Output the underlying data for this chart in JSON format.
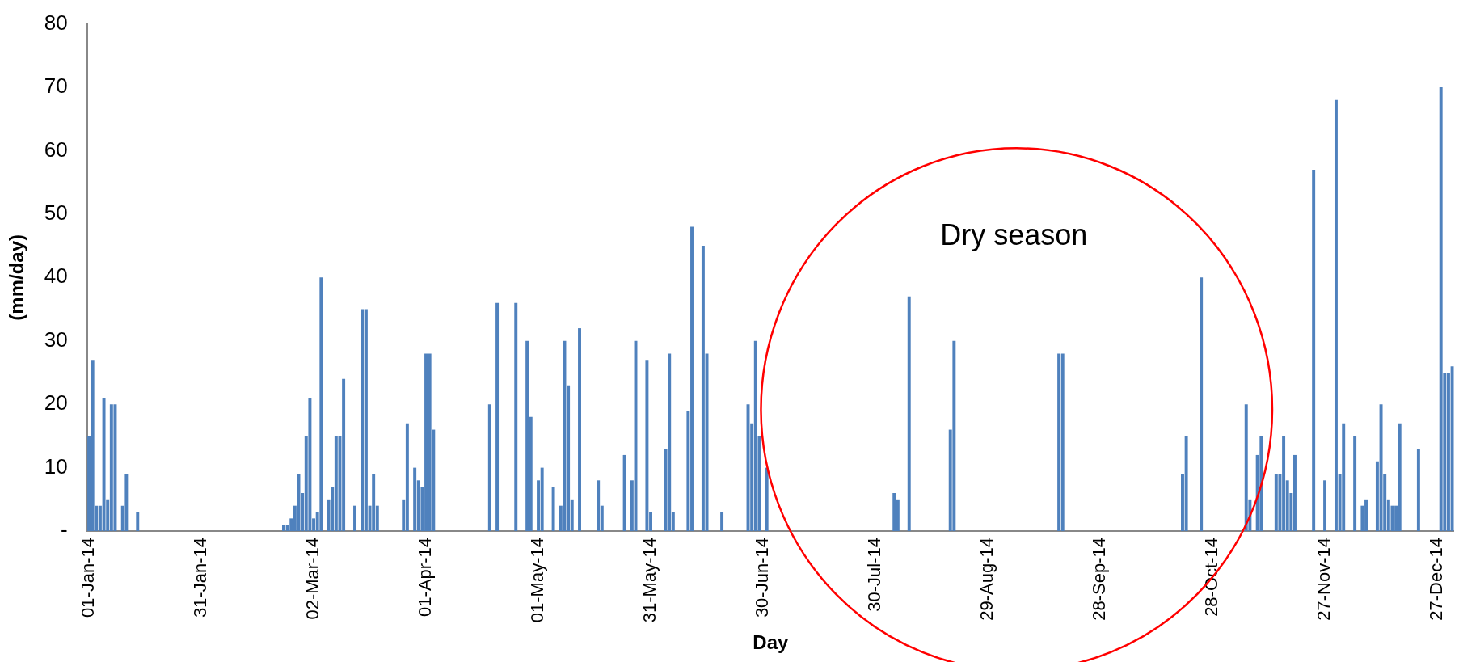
{
  "chart_data": {
    "type": "bar",
    "xlabel": "Day",
    "ylabel": "(mm/day)",
    "color": "#4f81bd",
    "annotations": [
      "Dry season"
    ],
    "ylim": [
      0,
      80
    ],
    "yticks": [
      {
        "value": 0,
        "label": "-"
      },
      10,
      20,
      30,
      40,
      50,
      60,
      70,
      80
    ],
    "categories": [
      "01-Jan-14",
      null,
      null,
      null,
      null,
      null,
      null,
      null,
      null,
      null,
      null,
      null,
      null,
      null,
      null,
      null,
      null,
      null,
      null,
      null,
      null,
      null,
      null,
      null,
      null,
      null,
      null,
      null,
      null,
      null,
      "31-Jan-14",
      null,
      null,
      null,
      null,
      null,
      null,
      null,
      null,
      null,
      null,
      null,
      null,
      null,
      null,
      null,
      null,
      null,
      null,
      null,
      null,
      null,
      null,
      null,
      null,
      null,
      null,
      null,
      null,
      null,
      "02-Mar-14",
      null,
      null,
      null,
      null,
      null,
      null,
      null,
      null,
      null,
      null,
      null,
      null,
      null,
      null,
      null,
      null,
      null,
      null,
      null,
      null,
      null,
      null,
      null,
      null,
      null,
      null,
      null,
      null,
      null,
      "01-Apr-14",
      null,
      null,
      null,
      null,
      null,
      null,
      null,
      null,
      null,
      null,
      null,
      null,
      null,
      null,
      null,
      null,
      null,
      null,
      null,
      null,
      null,
      null,
      null,
      null,
      null,
      null,
      null,
      null,
      null,
      "01-May-14",
      null,
      null,
      null,
      null,
      null,
      null,
      null,
      null,
      null,
      null,
      null,
      null,
      null,
      null,
      null,
      null,
      null,
      null,
      null,
      null,
      null,
      null,
      null,
      null,
      null,
      null,
      null,
      null,
      null,
      "31-May-14",
      null,
      null,
      null,
      null,
      null,
      null,
      null,
      null,
      null,
      null,
      null,
      null,
      null,
      null,
      null,
      null,
      null,
      null,
      null,
      null,
      null,
      null,
      null,
      null,
      null,
      null,
      null,
      null,
      null,
      "30-Jun-14",
      null,
      null,
      null,
      null,
      null,
      null,
      null,
      null,
      null,
      null,
      null,
      null,
      null,
      null,
      null,
      null,
      null,
      null,
      null,
      null,
      null,
      null,
      null,
      null,
      null,
      null,
      null,
      null,
      null,
      "30-Jul-14",
      null,
      null,
      null,
      null,
      null,
      null,
      null,
      null,
      null,
      null,
      null,
      null,
      null,
      null,
      null,
      null,
      null,
      null,
      null,
      null,
      null,
      null,
      null,
      null,
      null,
      null,
      null,
      null,
      null,
      "29-Aug-14",
      null,
      null,
      null,
      null,
      null,
      null,
      null,
      null,
      null,
      null,
      null,
      null,
      null,
      null,
      null,
      null,
      null,
      null,
      null,
      null,
      null,
      null,
      null,
      null,
      null,
      null,
      null,
      null,
      null,
      "28-Sep-14",
      null,
      null,
      null,
      null,
      null,
      null,
      null,
      null,
      null,
      null,
      null,
      null,
      null,
      null,
      null,
      null,
      null,
      null,
      null,
      null,
      null,
      null,
      null,
      null,
      null,
      null,
      null,
      null,
      null,
      "28-Oct-14",
      null,
      null,
      null,
      null,
      null,
      null,
      null,
      null,
      null,
      null,
      null,
      null,
      null,
      null,
      null,
      null,
      null,
      null,
      null,
      null,
      null,
      null,
      null,
      null,
      null,
      null,
      null,
      null,
      null,
      "27-Nov-14",
      null,
      null,
      null,
      null,
      null,
      null,
      null,
      null,
      null,
      null,
      null,
      null,
      null,
      null,
      null,
      null,
      null,
      null,
      null,
      null,
      null,
      null,
      null,
      null,
      null,
      null,
      null,
      null,
      null,
      "27-Dec-14",
      null,
      null,
      null,
      null
    ],
    "values": [
      15,
      27,
      4,
      4,
      21,
      5,
      20,
      20,
      0,
      4,
      9,
      0,
      0,
      3,
      0,
      0,
      0,
      0,
      0,
      0,
      0,
      0,
      0,
      0,
      0,
      0,
      0,
      0,
      0,
      0,
      0,
      0,
      0,
      0,
      0,
      0,
      0,
      0,
      0,
      0,
      0,
      0,
      0,
      0,
      0,
      0,
      0,
      0,
      0,
      0,
      0,
      0,
      1,
      1,
      2,
      4,
      9,
      6,
      15,
      21,
      2,
      3,
      40,
      0,
      5,
      7,
      15,
      15,
      24,
      0,
      0,
      4,
      0,
      35,
      35,
      4,
      9,
      4,
      0,
      0,
      0,
      0,
      0,
      0,
      5,
      17,
      0,
      10,
      8,
      7,
      28,
      28,
      16,
      0,
      0,
      0,
      0,
      0,
      0,
      0,
      0,
      0,
      0,
      0,
      0,
      0,
      0,
      20,
      0,
      36,
      0,
      0,
      0,
      0,
      36,
      0,
      0,
      30,
      18,
      0,
      8,
      10,
      0,
      0,
      7,
      0,
      4,
      30,
      23,
      5,
      0,
      32,
      0,
      0,
      0,
      0,
      8,
      4,
      0,
      0,
      0,
      0,
      0,
      12,
      0,
      8,
      30,
      0,
      0,
      27,
      3,
      0,
      0,
      0,
      13,
      28,
      3,
      0,
      0,
      0,
      19,
      48,
      0,
      0,
      45,
      28,
      0,
      0,
      0,
      3,
      0,
      0,
      0,
      0,
      0,
      0,
      20,
      17,
      30,
      15,
      0,
      10,
      0,
      0,
      0,
      0,
      0,
      0,
      0,
      0,
      0,
      0,
      0,
      0,
      0,
      0,
      0,
      0,
      0,
      0,
      0,
      0,
      0,
      0,
      0,
      0,
      0,
      0,
      0,
      0,
      0,
      0,
      0,
      0,
      0,
      6,
      5,
      0,
      0,
      37,
      0,
      0,
      0,
      0,
      0,
      0,
      0,
      0,
      0,
      0,
      16,
      30,
      0,
      0,
      0,
      0,
      0,
      0,
      0,
      0,
      0,
      0,
      0,
      0,
      0,
      0,
      0,
      0,
      0,
      0,
      0,
      0,
      0,
      0,
      0,
      0,
      0,
      0,
      0,
      28,
      28,
      0,
      0,
      0,
      0,
      0,
      0,
      0,
      0,
      0,
      0,
      0,
      0,
      0,
      0,
      0,
      0,
      0,
      0,
      0,
      0,
      0,
      0,
      0,
      0,
      0,
      0,
      0,
      0,
      0,
      0,
      0,
      9,
      15,
      0,
      0,
      0,
      40,
      0,
      0,
      0,
      0,
      0,
      0,
      0,
      0,
      0,
      0,
      0,
      20,
      5,
      0,
      12,
      15,
      0,
      0,
      0,
      9,
      9,
      15,
      8,
      6,
      12,
      0,
      0,
      0,
      0,
      57,
      0,
      0,
      8,
      0,
      0,
      68,
      9,
      17,
      0,
      0,
      15,
      0,
      4,
      5,
      0,
      0,
      11,
      20,
      9,
      5,
      4,
      4,
      17,
      0,
      0,
      0,
      0,
      13,
      0,
      0,
      0,
      0,
      0,
      70,
      25,
      25,
      26
    ]
  }
}
